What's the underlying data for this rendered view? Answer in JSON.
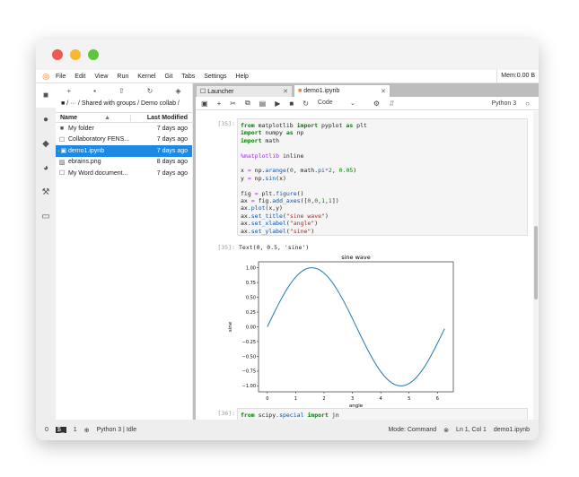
{
  "window": {
    "traffic_lights": [
      "#ee5a52",
      "#f5b830",
      "#5ec63d"
    ]
  },
  "menu": {
    "items": [
      "File",
      "Edit",
      "View",
      "Run",
      "Kernel",
      "Git",
      "Tabs",
      "Settings",
      "Help"
    ],
    "memory": "Mem:0.00 B"
  },
  "sidebar_icons": [
    "folder-icon",
    "running-icon",
    "git-icon",
    "palette-icon",
    "wrench-icon",
    "tabs-icon"
  ],
  "filebrowser": {
    "breadcrumb": "/ ··· / Shared with groups / Demo collab /",
    "col_name": "Name",
    "col_modified": "Last Modified",
    "files": [
      {
        "name": "My folder",
        "modified": "7 days ago",
        "icon": "folder-icon"
      },
      {
        "name": "Collaboratory FENS...",
        "modified": "7 days ago",
        "icon": "file-icon"
      },
      {
        "name": "demo1.ipynb",
        "modified": "7 days ago",
        "icon": "notebook-icon",
        "selected": true
      },
      {
        "name": "ebrains.png",
        "modified": "8 days ago",
        "icon": "image-icon"
      },
      {
        "name": "My Word document...",
        "modified": "7 days ago",
        "icon": "file-icon"
      }
    ]
  },
  "tabs": [
    {
      "label": "Launcher"
    },
    {
      "label": "demo1.ipynb",
      "active": true
    }
  ],
  "toolbar": {
    "cell_type": "Code",
    "kernel": "Python 3"
  },
  "cells": {
    "c1_prompt": "[35]:",
    "c1_code": [
      [
        [
          "from",
          "kw"
        ],
        [
          " matplotlib ",
          ""
        ],
        [
          "import",
          "kw"
        ],
        [
          " pyplot ",
          ""
        ],
        [
          "as",
          "kw"
        ],
        [
          " plt",
          ""
        ]
      ],
      [
        [
          "import",
          "kw"
        ],
        [
          " numpy ",
          ""
        ],
        [
          "as",
          "kw"
        ],
        [
          " np",
          ""
        ]
      ],
      [
        [
          "import",
          "kw"
        ],
        [
          " math",
          ""
        ]
      ],
      [],
      [
        [
          "%matplotlib",
          "mg"
        ],
        [
          " inline",
          ""
        ]
      ],
      [],
      [
        [
          "x ",
          ""
        ],
        [
          "=",
          "op"
        ],
        [
          " np.",
          ""
        ],
        [
          "arange",
          "fn"
        ],
        [
          "(",
          ""
        ],
        [
          "0",
          "num"
        ],
        [
          ", math.",
          ""
        ],
        [
          "pi",
          "fn"
        ],
        [
          "*",
          "op"
        ],
        [
          "2",
          "num"
        ],
        [
          ", ",
          ""
        ],
        [
          "0.05",
          "num"
        ],
        [
          ")",
          ""
        ]
      ],
      [
        [
          "y ",
          ""
        ],
        [
          "=",
          "op"
        ],
        [
          " np.",
          ""
        ],
        [
          "sin",
          "fn"
        ],
        [
          "(x)",
          ""
        ]
      ],
      [],
      [
        [
          "fig ",
          ""
        ],
        [
          "=",
          "op"
        ],
        [
          " plt.",
          ""
        ],
        [
          "figure",
          "fn"
        ],
        [
          "()",
          ""
        ]
      ],
      [
        [
          "ax ",
          ""
        ],
        [
          "=",
          "op"
        ],
        [
          " fig.",
          ""
        ],
        [
          "add_axes",
          "fn"
        ],
        [
          "([",
          ""
        ],
        [
          "0",
          "num"
        ],
        [
          ",",
          ""
        ],
        [
          "0",
          "num"
        ],
        [
          ",",
          ""
        ],
        [
          "1",
          "num"
        ],
        [
          ",",
          ""
        ],
        [
          "1",
          "num"
        ],
        [
          "])",
          ""
        ]
      ],
      [
        [
          "ax.",
          ""
        ],
        [
          "plot",
          "fn"
        ],
        [
          "(x,y)",
          ""
        ]
      ],
      [
        [
          "ax.",
          ""
        ],
        [
          "set_title",
          "fn"
        ],
        [
          "(",
          ""
        ],
        [
          "\"sine wave\"",
          "str"
        ],
        [
          ")",
          ""
        ]
      ],
      [
        [
          "ax.",
          ""
        ],
        [
          "set_xlabel",
          "fn"
        ],
        [
          "(",
          ""
        ],
        [
          "\"angle\"",
          "str"
        ],
        [
          ")",
          ""
        ]
      ],
      [
        [
          "ax.",
          ""
        ],
        [
          "set_ylabel",
          "fn"
        ],
        [
          "(",
          ""
        ],
        [
          "\"sine\"",
          "str"
        ],
        [
          ")",
          ""
        ]
      ]
    ],
    "o1_prompt": "[35]:",
    "o1_text": "Text(0, 0.5, 'sine')",
    "c2_prompt": "[36]:",
    "c2_code": [
      [
        [
          "from",
          "kw"
        ],
        [
          " scipy.",
          ""
        ],
        [
          "special",
          "fn"
        ],
        [
          " ",
          ""
        ],
        [
          "import",
          "kw"
        ],
        [
          " jn",
          ""
        ]
      ]
    ]
  },
  "chart_data": {
    "type": "line",
    "title": "sine wave",
    "xlabel": "angle",
    "ylabel": "sine",
    "xlim": [
      -0.31,
      6.56
    ],
    "ylim": [
      -1.1,
      1.1
    ],
    "xticks": [
      "0",
      "1",
      "2",
      "3",
      "4",
      "5",
      "6"
    ],
    "yticks": [
      "1.00",
      "0.75",
      "0.50",
      "0.25",
      "0.00",
      "−0.25",
      "−0.50",
      "−0.75",
      "−1.00"
    ],
    "series": [
      {
        "color": "#1f77b4",
        "x": [
          0,
          0.25,
          0.5,
          0.75,
          1,
          1.25,
          1.5,
          1.75,
          2,
          2.25,
          2.5,
          2.75,
          3,
          3.25,
          3.5,
          3.75,
          4,
          4.25,
          4.5,
          4.75,
          5,
          5.25,
          5.5,
          5.75,
          6,
          6.25
        ],
        "y": [
          0,
          0.247,
          0.479,
          0.682,
          0.841,
          0.949,
          0.997,
          0.984,
          0.909,
          0.778,
          0.598,
          0.382,
          0.141,
          -0.108,
          -0.351,
          -0.572,
          -0.757,
          -0.895,
          -0.978,
          -0.999,
          -0.959,
          -0.859,
          -0.706,
          -0.508,
          -0.279,
          -0.033
        ]
      }
    ]
  },
  "status": {
    "left1": "0",
    "left2": "1",
    "kernel_status": "Python 3 | Idle",
    "mode": "Mode: Command",
    "position": "Ln 1, Col 1",
    "file": "demo1.ipynb"
  }
}
